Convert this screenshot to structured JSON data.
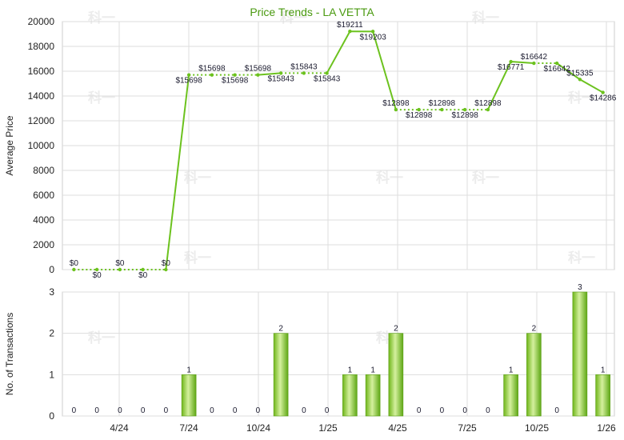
{
  "chart_data": [
    {
      "type": "line",
      "title": "Price Trends - LA VETTA",
      "ylabel": "Average Price",
      "ylim": [
        0,
        20000
      ],
      "yticks": [
        0,
        2000,
        4000,
        6000,
        8000,
        10000,
        12000,
        14000,
        16000,
        18000,
        20000
      ],
      "grid": true,
      "x_tick_labels": [
        "4/24",
        "7/24",
        "10/24",
        "1/25",
        "4/25",
        "7/25",
        "10/25",
        "1/26"
      ],
      "series": [
        {
          "values": [
            0,
            0,
            0,
            0,
            0,
            15698,
            15698,
            15698,
            15698,
            15843,
            15843,
            15843,
            19211,
            19203,
            12898,
            12898,
            12898,
            12898,
            12898,
            16771,
            16642,
            16642,
            15335,
            14286
          ],
          "labels": [
            "$0",
            "$0",
            "$0",
            "$0",
            "$0",
            "$15698",
            "$15698",
            "$15698",
            "$15698",
            "$15843",
            "$15843",
            "$15843",
            "$19211",
            "$19203",
            "$12898",
            "$12898",
            "$12898",
            "$12898",
            "$12898",
            "$16771",
            "$16642",
            "$16642",
            "$15335",
            "$14286"
          ],
          "has_transactions": [
            false,
            false,
            false,
            false,
            false,
            true,
            false,
            false,
            false,
            true,
            false,
            false,
            true,
            true,
            true,
            false,
            false,
            false,
            false,
            true,
            true,
            false,
            true,
            true
          ]
        }
      ]
    },
    {
      "type": "bar",
      "ylabel": "No. of Transactions",
      "ylim": [
        0,
        3
      ],
      "yticks": [
        0,
        1,
        2,
        3
      ],
      "grid": true,
      "x_tick_labels": [
        "4/24",
        "7/24",
        "10/24",
        "1/25",
        "4/25",
        "7/25",
        "10/25",
        "1/26"
      ],
      "values": [
        0,
        0,
        0,
        0,
        0,
        1,
        0,
        0,
        0,
        2,
        0,
        0,
        1,
        1,
        2,
        0,
        0,
        0,
        0,
        1,
        2,
        0,
        3,
        1
      ]
    }
  ],
  "colors": {
    "line": "#6cc21e",
    "bar": "#7cc41f",
    "bar_light": "#c9ec8f",
    "title": "#4a9a10",
    "label": "#1a1a2e",
    "grid": "#dddddd"
  }
}
